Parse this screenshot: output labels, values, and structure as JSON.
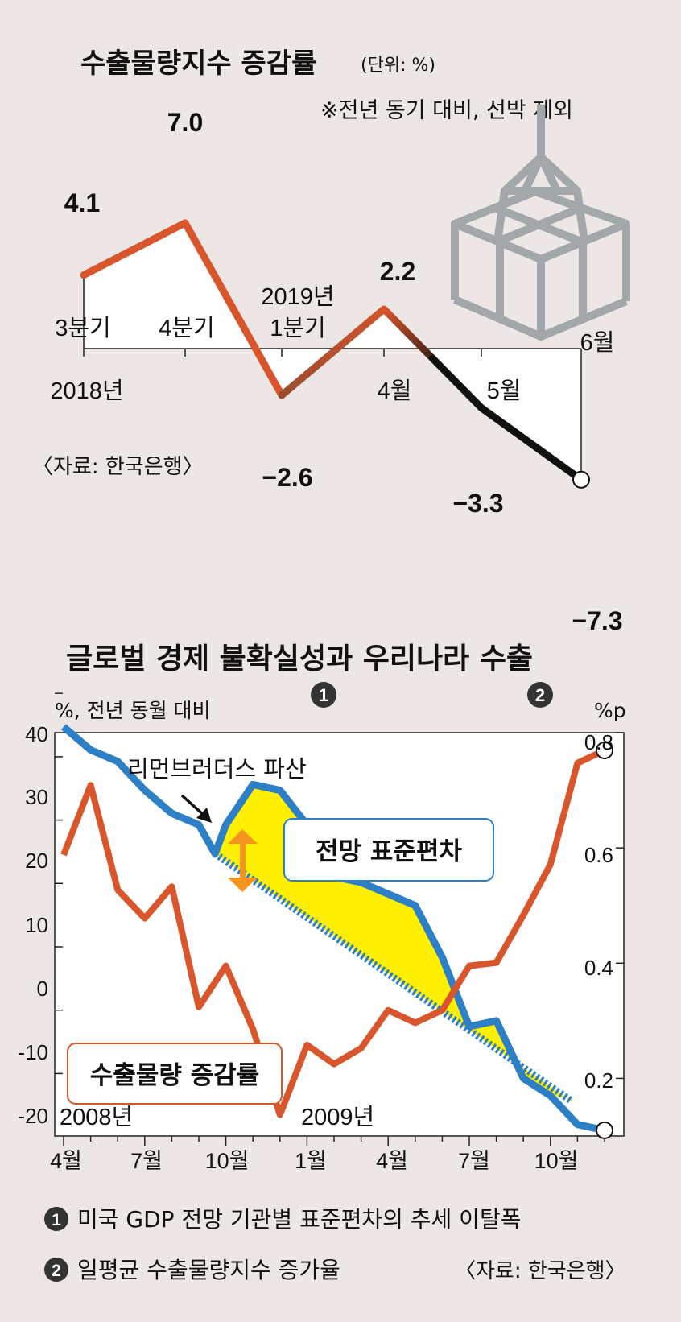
{
  "chart_data": [
    {
      "type": "line",
      "title": "수출물량지수 증감률",
      "unit": "(단위: %)",
      "note": "※전년 동기 대비, 선박 제외",
      "source": "〈자료: 한국은행〉",
      "year_labels": [
        "2018년",
        "2019년"
      ],
      "categories": [
        "3분기",
        "4분기",
        "1분기",
        "4월",
        "5월",
        "6월"
      ],
      "values": [
        4.1,
        7.0,
        -2.6,
        2.2,
        -3.3,
        -7.3
      ],
      "value_labels": [
        "4.1",
        "7.0",
        "−2.6",
        "2.2",
        "−3.3",
        "−7.3"
      ],
      "colors": {
        "line": "#d9552b",
        "recent": "#111111"
      }
    },
    {
      "type": "line",
      "title": "글로벌 경제 불확실성과 우리나라 수출",
      "marker1": "1",
      "marker2": "2",
      "left_axis_label": "%, 전년 동월 대비",
      "right_axis_label": "%p",
      "left_ticks": [
        "40",
        "30",
        "20",
        "10",
        "0",
        "-10",
        "-20"
      ],
      "right_ticks": [
        "0.8",
        "0.6",
        "0.4",
        "0.2"
      ],
      "x_ticks": [
        "4월",
        "7월",
        "10월",
        "1월",
        "4월",
        "7월",
        "10월"
      ],
      "year_labels": [
        "2008년",
        "2009년"
      ],
      "annotation": "리먼브러더스 파산",
      "series": [
        {
          "name": "수출물량 증감률",
          "axis": "left",
          "color": "#d9552b",
          "x": [
            0,
            1,
            2,
            3,
            4,
            5,
            6,
            7,
            8,
            9,
            10,
            11,
            12,
            13,
            14,
            15,
            16,
            17,
            18,
            19,
            20
          ],
          "values": [
            14.5,
            25.5,
            9.0,
            4.5,
            9.5,
            -9.5,
            -3.0,
            -13.0,
            -26.5,
            -15.5,
            -18.5,
            -16.0,
            -10.0,
            -12.0,
            -10.0,
            -3.0,
            -2.5,
            5.0,
            13.0,
            29.0,
            31.0
          ]
        },
        {
          "name": "전망 표준편차",
          "axis": "right",
          "color": "#2d7fc6",
          "x": [
            0,
            1,
            2,
            3,
            4,
            5,
            5.6,
            6,
            7,
            8,
            9,
            10,
            11,
            12,
            13,
            14,
            15,
            16,
            17,
            18,
            19,
            20
          ],
          "values": [
            0.81,
            0.77,
            0.75,
            0.7,
            0.66,
            0.64,
            0.59,
            0.64,
            0.71,
            0.7,
            0.64,
            0.55,
            0.54,
            0.52,
            0.5,
            0.41,
            0.29,
            0.3,
            0.2,
            0.17,
            0.12,
            0.11
          ]
        },
        {
          "name": "추세",
          "axis": "right",
          "style": "dashed",
          "color": "#2d7fc6",
          "x": [
            5.6,
            18.8
          ],
          "values": [
            0.59,
            0.16
          ]
        }
      ],
      "ylim_left": [
        -28,
        40
      ],
      "ylim_right": [
        0.1,
        0.8
      ],
      "legend_items": [
        "미국 GDP 전망 기관별 표준편차의 추세 이탈폭",
        "일평균 수출물량지수 증가율"
      ],
      "source": "〈자료: 한국은행〉"
    }
  ]
}
